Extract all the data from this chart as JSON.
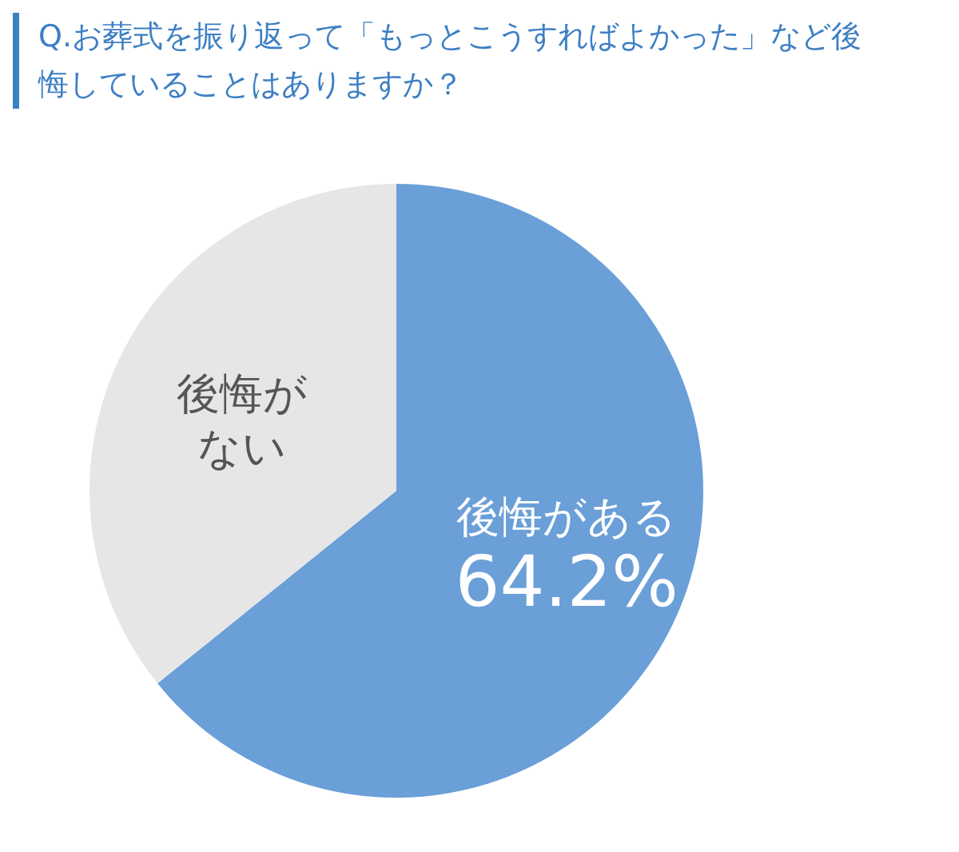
{
  "chart_data": {
    "type": "pie",
    "title": "Q.お葬式を振り返って「もっとこうすればよかった」など後悔していることはありますか？",
    "categories": [
      "後悔がある",
      "後悔がない"
    ],
    "values": [
      64.2,
      35.8
    ],
    "colors": [
      "#6a9fd8",
      "#e6e6e6"
    ],
    "value_labels": [
      "64.2%",
      null
    ]
  }
}
